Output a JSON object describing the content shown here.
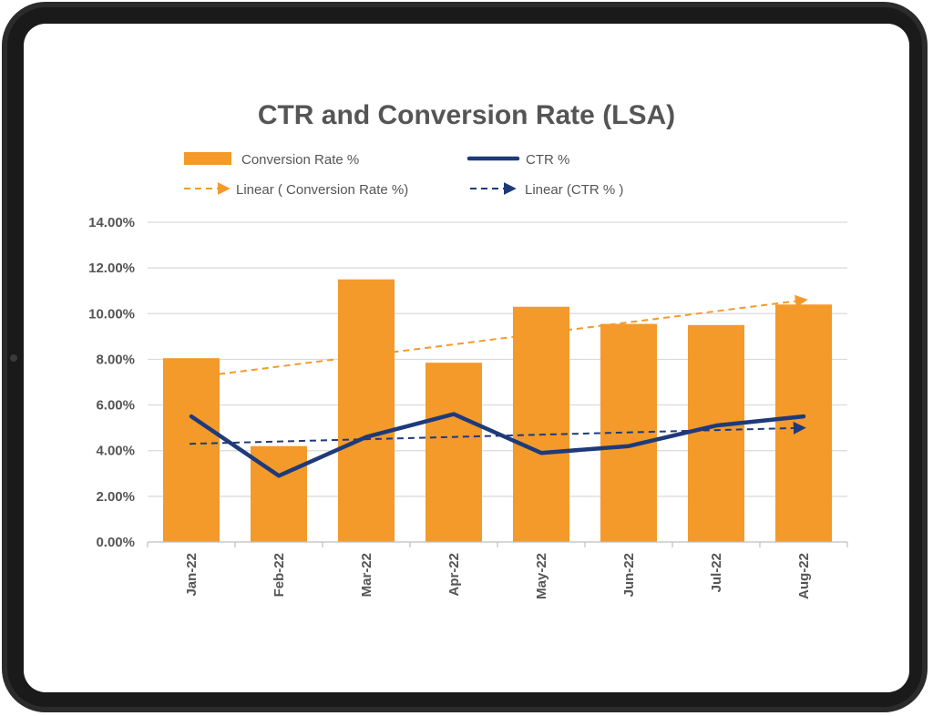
{
  "chart_data": {
    "type": "bar",
    "title": "CTR and Conversion Rate (LSA)",
    "categories": [
      "Jan-22",
      "Feb-22",
      "Mar-22",
      "Apr-22",
      "May-22",
      "Jun-22",
      "Jul-22",
      "Aug-22"
    ],
    "series": [
      {
        "name": "Conversion Rate %",
        "type": "bar",
        "color": "#F39A2B",
        "values": [
          8.05,
          4.2,
          11.5,
          7.85,
          10.3,
          9.55,
          9.5,
          10.4
        ]
      },
      {
        "name": "CTR %",
        "type": "line",
        "color": "#1F3A7A",
        "values": [
          5.5,
          2.9,
          4.6,
          5.6,
          3.9,
          4.2,
          5.1,
          5.5
        ]
      },
      {
        "name": "Linear ( Conversion Rate %)",
        "type": "trendline",
        "color": "#F39A2B",
        "start": 7.35,
        "end": 10.6
      },
      {
        "name": "Linear (CTR % )",
        "type": "trendline",
        "color": "#1F3A7A",
        "start": 4.3,
        "end": 5.0
      }
    ],
    "ylim": [
      0,
      14
    ],
    "yticks": [
      "0.00%",
      "2.00%",
      "4.00%",
      "6.00%",
      "8.00%",
      "10.00%",
      "12.00%",
      "14.00%"
    ],
    "grid": true,
    "legend_position": "top"
  }
}
